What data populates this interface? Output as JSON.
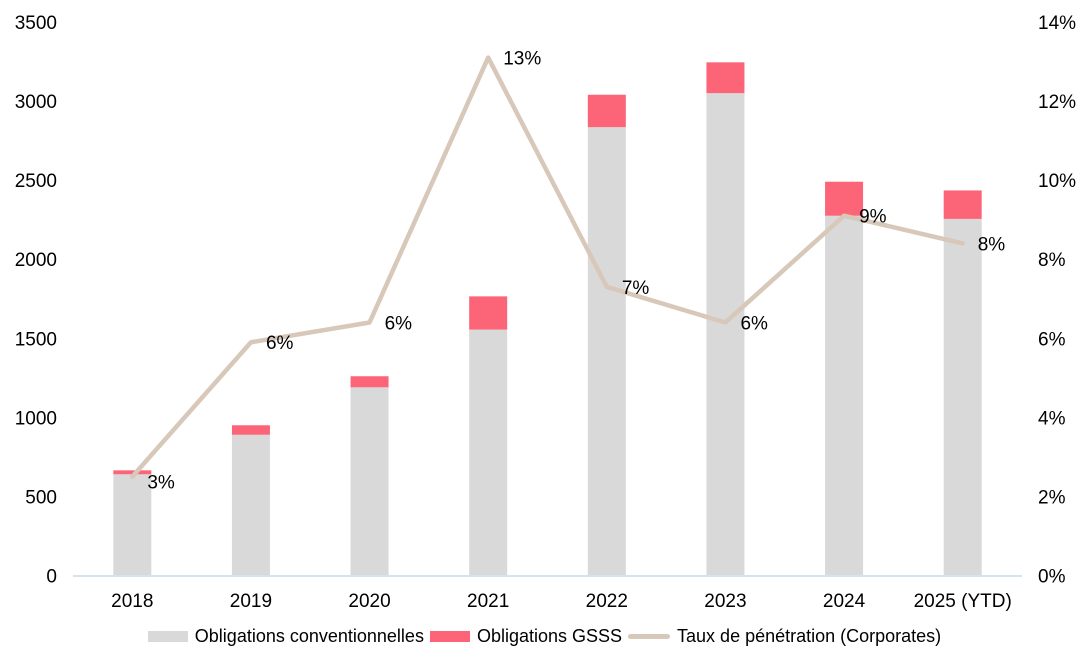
{
  "chart_data": {
    "type": "bar",
    "subtype": "stacked-bar-with-line-combo",
    "title": "",
    "categories": [
      "2018",
      "2019",
      "2020",
      "2021",
      "2022",
      "2023",
      "2024",
      "2025 (YTD)"
    ],
    "series": [
      {
        "name": "Obligations conventionnelles",
        "type": "bar",
        "stack": "bonds",
        "axis": "left",
        "color": "#d9d9d9",
        "values": [
          640,
          890,
          1190,
          1555,
          2835,
          3050,
          2275,
          2255
        ]
      },
      {
        "name": "Obligations GSSS",
        "type": "bar",
        "stack": "bonds",
        "axis": "left",
        "color": "#fc6478",
        "values": [
          25,
          60,
          70,
          210,
          205,
          195,
          215,
          180
        ]
      },
      {
        "name": "Taux de pénétration (Corporates)",
        "type": "line",
        "axis": "right",
        "color": "#d8c8ba",
        "values": [
          2.5,
          5.9,
          6.4,
          13.1,
          7.3,
          6.4,
          9.1,
          8.4
        ],
        "point_labels": [
          "3%",
          "6%",
          "6%",
          "13%",
          "7%",
          "6%",
          "9%",
          "8%"
        ]
      }
    ],
    "left_axis": {
      "min": 0,
      "max": 3500,
      "step": 500,
      "tick_labels": [
        "0",
        "500",
        "1000",
        "1500",
        "2000",
        "2500",
        "3000",
        "3500"
      ]
    },
    "right_axis": {
      "min": 0,
      "max": 14,
      "step": 2,
      "tick_labels": [
        "0%",
        "2%",
        "4%",
        "6%",
        "8%",
        "10%",
        "12%",
        "14%"
      ]
    },
    "grid": "off",
    "legend_position": "bottom",
    "colors": {
      "axis_line": "#d5e3ec",
      "text": "#000000",
      "background": "#ffffff"
    }
  }
}
